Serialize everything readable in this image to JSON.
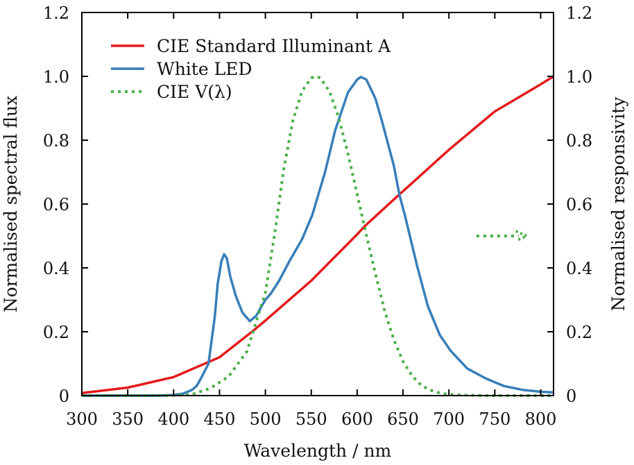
{
  "chart_data": {
    "type": "line",
    "title": "",
    "xlabel": "Wavelength / nm",
    "ylabel": "Normalised spectral flux",
    "y2label": "Normalised responsivity",
    "xlim": [
      300,
      814
    ],
    "ylim": [
      0,
      1.2
    ],
    "y2lim": [
      0,
      1.2
    ],
    "grid": false,
    "legend_position": "top-left",
    "x_ticks": [
      "300",
      "350",
      "400",
      "450",
      "500",
      "550",
      "600",
      "650",
      "700",
      "750",
      "800"
    ],
    "y_ticks": [
      "0",
      "0.2",
      "0.4",
      "0.6",
      "0.8",
      "1.0",
      "1.2"
    ],
    "y2_ticks": [
      "0",
      "0.2",
      "0.4",
      "0.6",
      "0.8",
      "1.0",
      "1.2"
    ],
    "annotation": {
      "type": "arrow",
      "series": "CIE V(λ)",
      "points_to": "right-axis",
      "y2": 0.5,
      "x_from": 730,
      "x_to": 785
    },
    "series": [
      {
        "name": "CIE Standard Illuminant A",
        "color": "#e41a1c",
        "style": "solid",
        "axis": "left",
        "x": [
          300,
          350,
          400,
          450,
          488,
          500,
          550,
          600,
          608,
          646,
          650,
          700,
          740,
          750,
          800,
          814
        ],
        "y": [
          0.008,
          0.025,
          0.058,
          0.12,
          0.206,
          0.235,
          0.36,
          0.505,
          0.53,
          0.63,
          0.64,
          0.77,
          0.866,
          0.89,
          0.975,
          1.0
        ]
      },
      {
        "name": "White LED",
        "color": "#377eb8",
        "style": "solid",
        "axis": "left",
        "x": [
          300,
          380,
          400,
          410,
          420,
          425,
          430,
          438,
          445,
          448,
          452,
          455,
          458,
          462,
          468,
          475,
          483,
          490,
          500,
          506,
          515,
          526,
          540,
          551,
          565,
          576,
          590,
          600,
          604,
          610,
          620,
          627,
          640,
          646,
          652,
          665,
          677,
          690,
          702,
          720,
          740,
          760,
          780,
          800,
          814
        ],
        "y": [
          0.0,
          0.0,
          0.002,
          0.006,
          0.018,
          0.03,
          0.055,
          0.1,
          0.25,
          0.35,
          0.42,
          0.443,
          0.43,
          0.37,
          0.31,
          0.26,
          0.233,
          0.25,
          0.3,
          0.32,
          0.36,
          0.42,
          0.49,
          0.565,
          0.7,
          0.83,
          0.95,
          0.99,
          0.998,
          0.99,
          0.93,
          0.86,
          0.72,
          0.63,
          0.565,
          0.41,
          0.28,
          0.19,
          0.14,
          0.085,
          0.054,
          0.03,
          0.018,
          0.012,
          0.01
        ]
      },
      {
        "name": "CIE V(λ)",
        "color": "#4daf4a",
        "style": "dotted",
        "axis": "right",
        "x": [
          300,
          380,
          400,
          420,
          440,
          460,
          480,
          500,
          510,
          520,
          530,
          540,
          550,
          555,
          560,
          570,
          580,
          590,
          600,
          610,
          620,
          630,
          640,
          650,
          660,
          670,
          680,
          690,
          700,
          720,
          750,
          814
        ],
        "y": [
          0,
          0,
          0.0004,
          0.004,
          0.023,
          0.06,
          0.139,
          0.323,
          0.503,
          0.71,
          0.862,
          0.954,
          0.995,
          1.0,
          0.995,
          0.952,
          0.87,
          0.757,
          0.631,
          0.503,
          0.381,
          0.265,
          0.175,
          0.107,
          0.061,
          0.032,
          0.017,
          0.008,
          0.004,
          0.001,
          0,
          0
        ]
      }
    ]
  }
}
